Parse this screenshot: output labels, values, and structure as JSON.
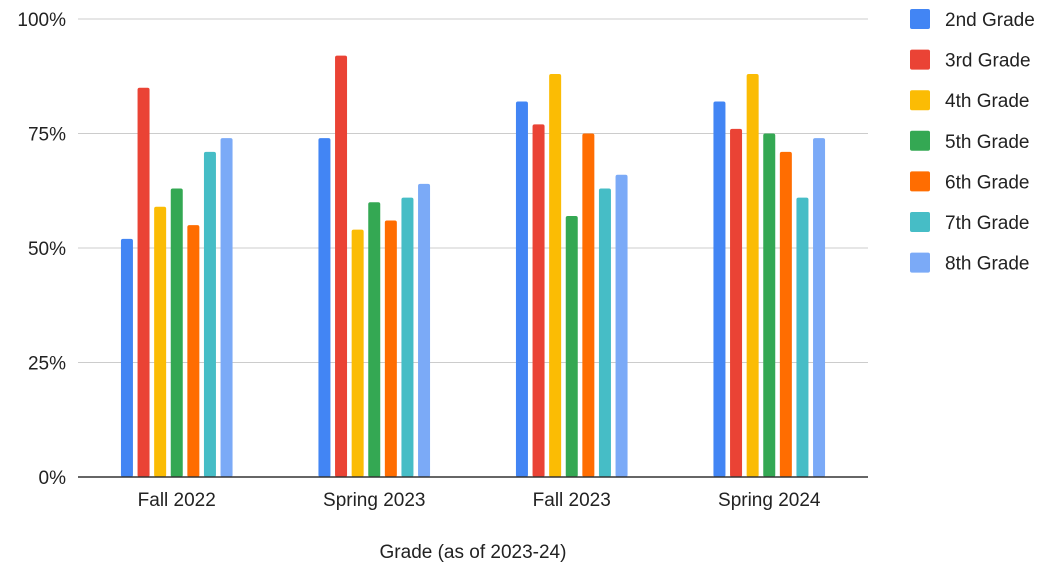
{
  "chart_data": {
    "type": "bar",
    "title": "",
    "xlabel": "Grade (as of 2023-24)",
    "ylabel": "",
    "ylim": [
      0,
      100
    ],
    "y_ticks": [
      "0%",
      "25%",
      "50%",
      "75%",
      "100%"
    ],
    "grid": true,
    "legend_position": "right",
    "categories": [
      "Fall 2022",
      "Spring 2023",
      "Fall 2023",
      "Spring 2024"
    ],
    "series": [
      {
        "name": "2nd Grade",
        "color": "#4285F4",
        "values": [
          52,
          74,
          82,
          82
        ]
      },
      {
        "name": "3rd Grade",
        "color": "#EA4335",
        "values": [
          85,
          92,
          77,
          76
        ]
      },
      {
        "name": "4th Grade",
        "color": "#FBBC04",
        "values": [
          59,
          54,
          88,
          88
        ]
      },
      {
        "name": "5th Grade",
        "color": "#34A853",
        "values": [
          63,
          60,
          57,
          75
        ]
      },
      {
        "name": "6th Grade",
        "color": "#FF6D01",
        "values": [
          55,
          56,
          75,
          71
        ]
      },
      {
        "name": "7th Grade",
        "color": "#46BDC6",
        "values": [
          71,
          61,
          63,
          61
        ]
      },
      {
        "name": "8th Grade",
        "color": "#7BAAF7",
        "values": [
          74,
          64,
          66,
          74
        ]
      }
    ]
  }
}
